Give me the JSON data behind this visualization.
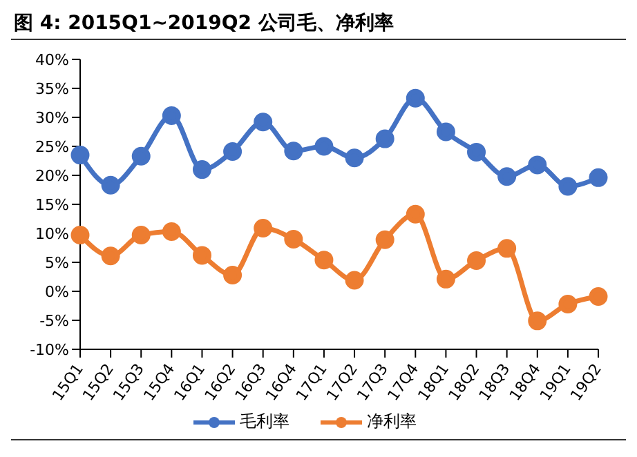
{
  "chart_data": {
    "type": "line",
    "title": "图 4:  2015Q1~2019Q2 公司毛、净利率",
    "categories": [
      "15Q1",
      "15Q2",
      "15Q3",
      "15Q4",
      "16Q1",
      "16Q2",
      "16Q3",
      "16Q4",
      "17Q1",
      "17Q2",
      "17Q3",
      "17Q4",
      "18Q1",
      "18Q2",
      "18Q3",
      "18Q4",
      "19Q1",
      "19Q2"
    ],
    "series": [
      {
        "name": "毛利率",
        "color": "#4472c4",
        "values": [
          23.5,
          18.3,
          23.3,
          30.3,
          21,
          24.1,
          29.2,
          24.2,
          25,
          23,
          26.3,
          33.3,
          27.5,
          24,
          19.8,
          21.8,
          18.1,
          19.6
        ]
      },
      {
        "name": "净利率",
        "color": "#ed7d31",
        "values": [
          9.7,
          6.1,
          9.7,
          10.3,
          6.2,
          2.8,
          10.9,
          9,
          5.4,
          1.9,
          8.9,
          13.3,
          2.1,
          5.3,
          7.4,
          -5.1,
          -2.2,
          -0.9
        ]
      }
    ],
    "ylim": [
      -10,
      40
    ],
    "yticks": [
      {
        "value": -10,
        "label": "-10%"
      },
      {
        "value": -5,
        "label": "-5%"
      },
      {
        "value": 0,
        "label": "0%"
      },
      {
        "value": 5,
        "label": "5%"
      },
      {
        "value": 10,
        "label": "10%"
      },
      {
        "value": 15,
        "label": "15%"
      },
      {
        "value": 20,
        "label": "20%"
      },
      {
        "value": 25,
        "label": "25%"
      },
      {
        "value": 30,
        "label": "30%"
      },
      {
        "value": 35,
        "label": "35%"
      },
      {
        "value": 40,
        "label": "40%"
      }
    ],
    "grid": false,
    "legend": "bottom",
    "marker": "circle",
    "line_style": "solid"
  }
}
